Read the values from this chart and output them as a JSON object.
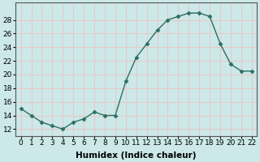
{
  "x": [
    0,
    1,
    2,
    3,
    4,
    5,
    6,
    7,
    8,
    9,
    10,
    11,
    12,
    13,
    14,
    15,
    16,
    17,
    18,
    19,
    20,
    21,
    22
  ],
  "y": [
    15.0,
    14.0,
    13.0,
    12.5,
    12.0,
    13.0,
    13.5,
    14.5,
    14.0,
    14.0,
    19.0,
    22.5,
    24.5,
    26.5,
    28.0,
    28.5,
    29.0,
    29.0,
    28.5,
    24.5,
    21.5,
    20.5,
    20.5
  ],
  "line_color": "#2d6e63",
  "marker": "D",
  "marker_size": 2.5,
  "line_width": 1.0,
  "background_color": "#cce8e8",
  "grid_color": "#e8c8c8",
  "xlabel": "Humidex (Indice chaleur)",
  "xlabel_fontsize": 7.5,
  "xlabel_weight": "bold",
  "yticks": [
    12,
    14,
    16,
    18,
    20,
    22,
    24,
    26,
    28
  ],
  "ylim": [
    11.0,
    30.5
  ],
  "xlim": [
    -0.5,
    22.5
  ],
  "tick_fontsize": 6.5
}
